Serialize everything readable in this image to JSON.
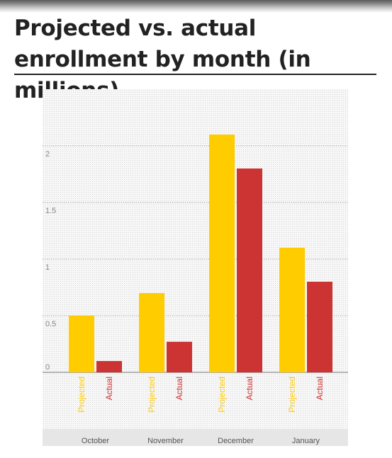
{
  "header": {
    "title": "Projected vs. actual enrollment by month (in millions)"
  },
  "colors": {
    "projected": "#ffcc00",
    "actual": "#cc3333",
    "grid": "#9a9a9a",
    "tick_text": "#888888",
    "month_text": "#555555"
  },
  "chart_data": {
    "type": "bar",
    "title": "Projected vs. actual enrollment by month (in millions)",
    "categories": [
      "October",
      "November",
      "December",
      "January"
    ],
    "series": [
      {
        "name": "Projected",
        "values": [
          0.5,
          0.7,
          2.1,
          1.1
        ]
      },
      {
        "name": "Actual",
        "values": [
          0.1,
          0.27,
          1.8,
          0.8
        ]
      }
    ],
    "yticks": [
      0,
      0.5,
      1,
      1.5,
      2
    ],
    "ytick_labels": [
      "0",
      "0.5",
      "1",
      "1.5",
      "2"
    ],
    "ylim": [
      0,
      2.5
    ],
    "grid": true,
    "legend": "bar-labels-below-axis"
  }
}
